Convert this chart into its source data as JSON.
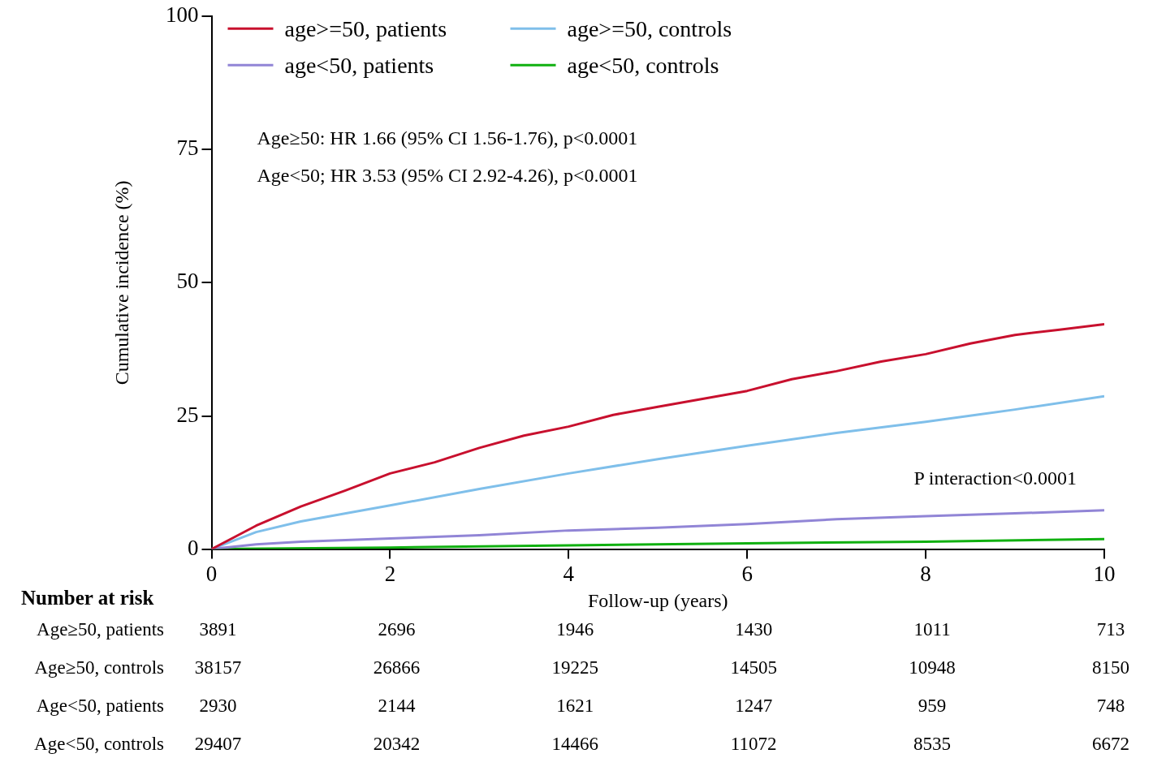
{
  "chart_data": {
    "type": "line",
    "xlabel": "Follow-up (years)",
    "ylabel": "Cumulative incidence (%)",
    "xlim": [
      0,
      10
    ],
    "xticks": [
      0,
      2,
      4,
      6,
      8,
      10
    ],
    "ylim": [
      0,
      100
    ],
    "yticks": [
      0,
      25,
      50,
      75,
      100
    ],
    "grid": false,
    "legend": "top left",
    "marker": "none",
    "line_style": "solid",
    "series": [
      {
        "name": "age>=50, patients",
        "color": "#c8102e",
        "x": [
          0,
          0.5,
          1,
          1.5,
          2,
          2.5,
          3,
          3.5,
          4,
          4.5,
          5,
          5.5,
          6,
          6.5,
          7,
          7.5,
          8,
          8.5,
          9,
          9.5,
          10
        ],
        "values": [
          0,
          4.4,
          8,
          11,
          14.2,
          16.3,
          19,
          21.3,
          23,
          25.2,
          26.7,
          28.2,
          29.7,
          31.9,
          33.4,
          35.2,
          36.6,
          38.6,
          40.2,
          41.2,
          42.2
        ]
      },
      {
        "name": "age<50, patients",
        "color": "#9185d6",
        "x": [
          0,
          0.5,
          1,
          2,
          3,
          4,
          5,
          6,
          7,
          8,
          9,
          10
        ],
        "values": [
          0,
          0.9,
          1.4,
          2,
          2.6,
          3.5,
          4,
          4.7,
          5.6,
          6.2,
          6.7,
          7.3
        ]
      },
      {
        "name": "age>=50, controls",
        "color": "#7fbfea",
        "x": [
          0,
          0.5,
          1,
          2,
          3,
          4,
          5,
          6,
          7,
          8,
          9,
          10
        ],
        "values": [
          0,
          3.2,
          5.2,
          8.2,
          11.3,
          14.2,
          16.9,
          19.4,
          21.8,
          23.9,
          26.2,
          28.7
        ]
      },
      {
        "name": "age<50, controls",
        "color": "#10b010",
        "x": [
          0,
          2,
          4,
          6,
          8,
          10
        ],
        "values": [
          0,
          0.3,
          0.7,
          1.1,
          1.4,
          1.9
        ]
      }
    ],
    "annotations": [
      "Age≥50: HR 1.66 (95% CI 1.56-1.76), p<0.0001",
      "Age<50; HR 3.53 (95% CI 2.92-4.26), p<0.0001",
      "P interaction<0.0001",
      "Number at risk",
      "Age≥50, patients",
      "Age≥50, controls",
      "Age<50, patients",
      "Age<50, controls",
      "3891",
      "2696",
      "1946",
      "1430",
      "1011",
      "713",
      "38157",
      "26866",
      "19225",
      "14505",
      "10948",
      "8150",
      "2930",
      "2144",
      "1621",
      "1247",
      "959",
      "748",
      "29407",
      "20342",
      "14466",
      "11072",
      "8535",
      "6672"
    ]
  }
}
